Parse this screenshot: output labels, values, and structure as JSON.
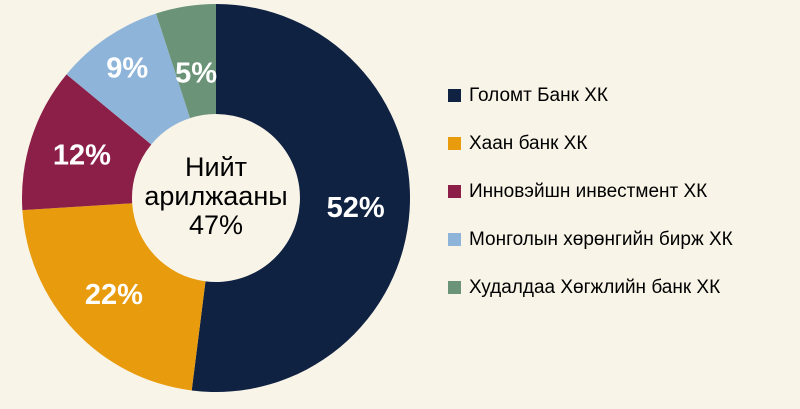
{
  "colors": {
    "background": "#F8F4E8",
    "slice_label_text": "#FFFFFF",
    "center_text": "#000000"
  },
  "chart_data": {
    "type": "pie",
    "donut": true,
    "start_angle_deg": 0,
    "direction": "clockwise",
    "legend_position": "right",
    "units": "%",
    "series": [
      {
        "label": "Голомт Банк ХК",
        "value": 52,
        "value_label": "52%",
        "color": "#102242"
      },
      {
        "label": "Хаан банк ХК",
        "value": 22,
        "value_label": "22%",
        "color": "#E89B0C"
      },
      {
        "label": "Инновэйшн инвестмент ХК",
        "value": 12,
        "value_label": "12%",
        "color": "#8C1F48"
      },
      {
        "label": "Монголын хөрөнгийн бирж ХК",
        "value": 9,
        "value_label": "9%",
        "color": "#8FB4D9"
      },
      {
        "label": "Худалдаа Хөгжлийн банк ХК",
        "value": 5,
        "value_label": "5%",
        "color": "#6A9377"
      }
    ],
    "center_label": {
      "line1": "Нийт",
      "line2": "арилжааны",
      "line3": "47%"
    }
  }
}
